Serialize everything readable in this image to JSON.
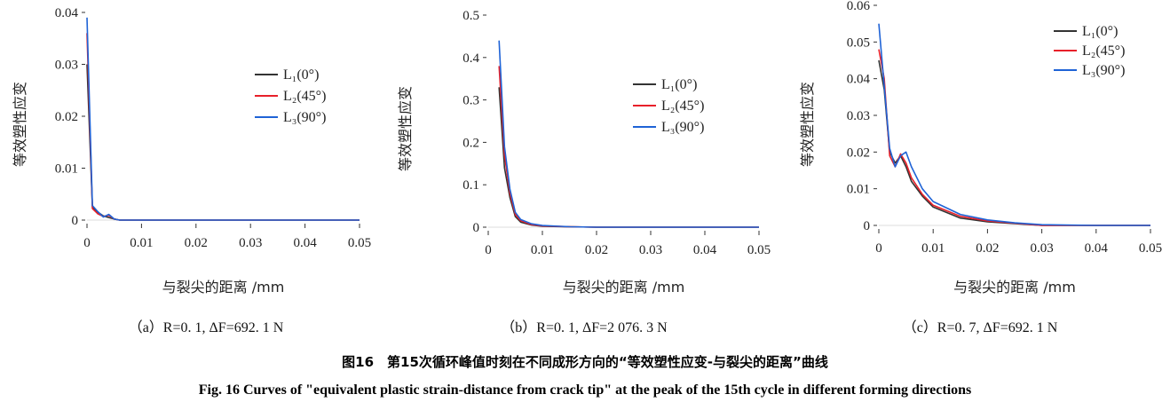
{
  "figure": {
    "caption_cn": "图16　第15次循环峰值时刻在不同成形方向的“等效塑性应变-与裂尖的距离”曲线",
    "caption_en": "Fig. 16    Curves of \"equivalent plastic strain-distance from crack tip\" at the peak of the 15th cycle in different forming directions"
  },
  "chart_data": [
    {
      "type": "line",
      "subtitle": "（a）R=0. 1, ΔF=692. 1 N",
      "xlabel": "与裂尖的距离 /mm",
      "ylabel": "等效塑性应变",
      "xlim": [
        0,
        0.05
      ],
      "ylim": [
        0,
        0.04
      ],
      "x_ticks": [
        "0",
        "0.01",
        "0.02",
        "0.03",
        "0.04",
        "0.05"
      ],
      "y_ticks": [
        "0",
        "0.01",
        "0.02",
        "0.03",
        "0.04"
      ],
      "legend_position": "right-middle",
      "series": [
        {
          "name": "L₁(0°)",
          "color": "#333333",
          "x": [
            0,
            0.001,
            0.002,
            0.003,
            0.004,
            0.005,
            0.006,
            0.01,
            0.02,
            0.03,
            0.04,
            0.05
          ],
          "y": [
            0.03,
            0.0025,
            0.0015,
            0.0008,
            0.0005,
            0.0002,
            0,
            0,
            0,
            0,
            0,
            0
          ]
        },
        {
          "name": "L₂(45°)",
          "color": "#e8202a",
          "x": [
            0,
            0.001,
            0.002,
            0.003,
            0.004,
            0.005,
            0.006,
            0.01,
            0.02,
            0.03,
            0.04,
            0.05
          ],
          "y": [
            0.036,
            0.0022,
            0.0012,
            0.0007,
            0.0009,
            0.0002,
            0,
            0,
            0,
            0,
            0,
            0
          ]
        },
        {
          "name": "L₃(90°)",
          "color": "#1f63d6",
          "x": [
            0,
            0.001,
            0.002,
            0.003,
            0.004,
            0.005,
            0.006,
            0.01,
            0.02,
            0.03,
            0.04,
            0.05
          ],
          "y": [
            0.039,
            0.0028,
            0.0016,
            0.0006,
            0.0011,
            0.0002,
            0,
            0,
            0,
            0,
            0,
            0
          ]
        }
      ]
    },
    {
      "type": "line",
      "subtitle": "（b）R=0. 1, ΔF=2 076. 3 N",
      "xlabel": "与裂尖的距离 /mm",
      "ylabel": "等效塑性应变",
      "xlim": [
        0,
        0.05
      ],
      "ylim": [
        0,
        0.5
      ],
      "x_ticks": [
        "0",
        "0.01",
        "0.02",
        "0.03",
        "0.04",
        "0.05"
      ],
      "y_ticks": [
        "0",
        "0.1",
        "0.2",
        "0.3",
        "0.4",
        "0.5"
      ],
      "legend_position": "right-middle",
      "series": [
        {
          "name": "L₁(0°)",
          "color": "#333333",
          "x": [
            0.002,
            0.003,
            0.004,
            0.005,
            0.006,
            0.008,
            0.01,
            0.015,
            0.02,
            0.03,
            0.04,
            0.05
          ],
          "y": [
            0.33,
            0.14,
            0.07,
            0.025,
            0.012,
            0.005,
            0.002,
            0.001,
            0,
            0,
            0,
            0
          ]
        },
        {
          "name": "L₂(45°)",
          "color": "#e8202a",
          "x": [
            0.002,
            0.003,
            0.004,
            0.005,
            0.006,
            0.008,
            0.01,
            0.015,
            0.02,
            0.03,
            0.04,
            0.05
          ],
          "y": [
            0.38,
            0.17,
            0.08,
            0.03,
            0.015,
            0.006,
            0.003,
            0.001,
            0,
            0,
            0,
            0
          ]
        },
        {
          "name": "L₃(90°)",
          "color": "#1f63d6",
          "x": [
            0.002,
            0.003,
            0.004,
            0.005,
            0.006,
            0.008,
            0.01,
            0.015,
            0.02,
            0.03,
            0.04,
            0.05
          ],
          "y": [
            0.44,
            0.19,
            0.09,
            0.035,
            0.018,
            0.008,
            0.004,
            0.001,
            0,
            0,
            0,
            0
          ]
        }
      ]
    },
    {
      "type": "line",
      "subtitle": "（c）R=0. 7, ΔF=692. 1 N",
      "xlabel": "与裂尖的距离 /mm",
      "ylabel": "等效塑性应变",
      "xlim": [
        0,
        0.05
      ],
      "ylim": [
        0,
        0.06
      ],
      "x_ticks": [
        "0",
        "0.01",
        "0.02",
        "0.03",
        "0.04",
        "0.05"
      ],
      "y_ticks": [
        "0",
        "0.01",
        "0.02",
        "0.03",
        "0.04",
        "0.05",
        "0.06"
      ],
      "legend_position": "top-right",
      "series": [
        {
          "name": "L₁(0°)",
          "color": "#333333",
          "x": [
            0,
            0.001,
            0.002,
            0.003,
            0.004,
            0.005,
            0.006,
            0.008,
            0.01,
            0.015,
            0.02,
            0.025,
            0.03,
            0.04,
            0.05
          ],
          "y": [
            0.045,
            0.037,
            0.02,
            0.017,
            0.019,
            0.016,
            0.012,
            0.008,
            0.005,
            0.002,
            0.001,
            0.0005,
            0,
            0,
            0
          ]
        },
        {
          "name": "L₂(45°)",
          "color": "#e8202a",
          "x": [
            0,
            0.001,
            0.002,
            0.003,
            0.004,
            0.005,
            0.006,
            0.008,
            0.01,
            0.015,
            0.02,
            0.025,
            0.03,
            0.04,
            0.05
          ],
          "y": [
            0.048,
            0.04,
            0.019,
            0.016,
            0.0195,
            0.017,
            0.013,
            0.0085,
            0.0055,
            0.0025,
            0.0012,
            0.0006,
            0,
            0,
            0
          ]
        },
        {
          "name": "L₃(90°)",
          "color": "#1f63d6",
          "x": [
            0,
            0.001,
            0.002,
            0.003,
            0.004,
            0.005,
            0.006,
            0.008,
            0.01,
            0.015,
            0.02,
            0.025,
            0.03,
            0.04,
            0.05
          ],
          "y": [
            0.055,
            0.038,
            0.021,
            0.016,
            0.019,
            0.02,
            0.016,
            0.01,
            0.0065,
            0.003,
            0.0015,
            0.0007,
            0.0002,
            0,
            0
          ]
        }
      ]
    }
  ]
}
